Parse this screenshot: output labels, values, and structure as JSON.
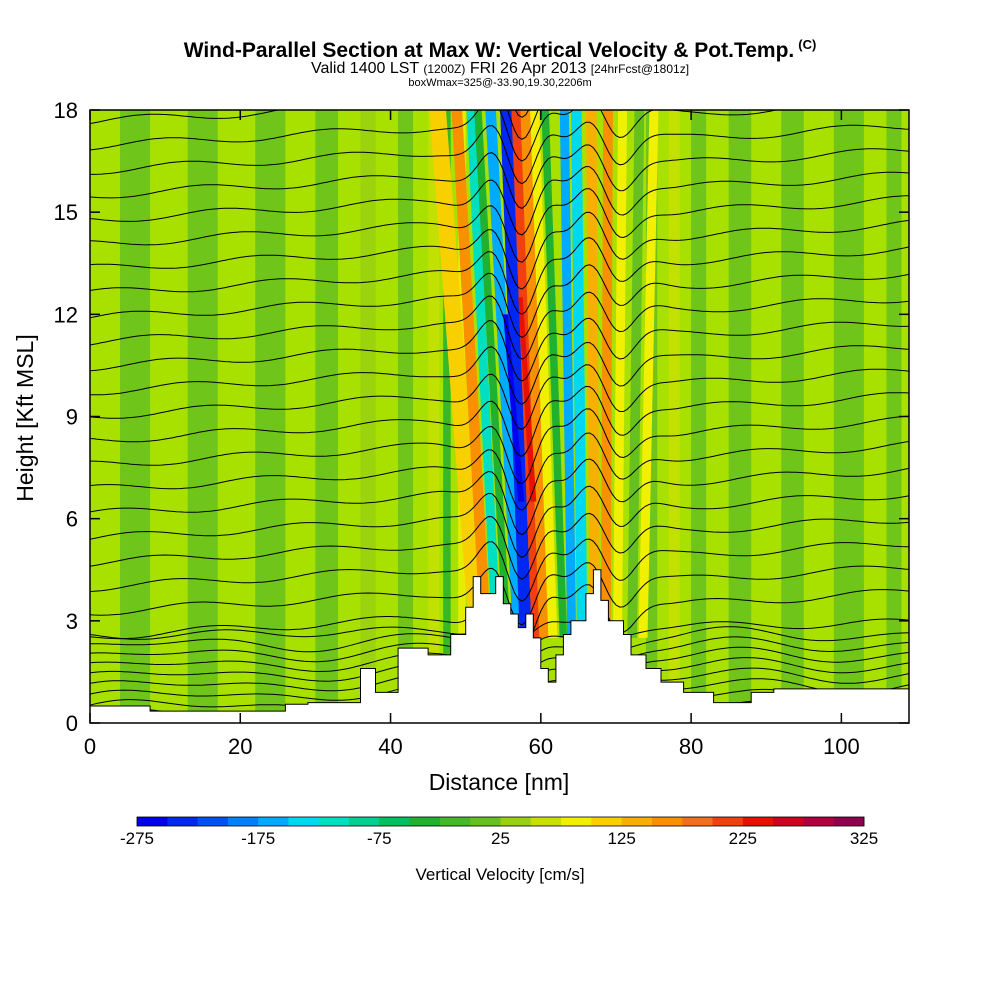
{
  "chart_data": {
    "type": "heatmap",
    "title": "Wind-Parallel Section at Max W: Vertical Velocity & Pot.Temp.",
    "title_mark": "(C)",
    "subtitle_main_a": "Valid 1400 LST",
    "subtitle_small_a": "(1200Z)",
    "subtitle_main_b": "FRI 26 Apr 2013",
    "subtitle_small_b": "[24hrFcst@1801z]",
    "subtitle2": "boxWmax=325@-33.90,19.30,2206m",
    "xlabel": "Distance [nm]",
    "ylabel": "Height [Kft MSL]",
    "xlim": [
      0,
      109
    ],
    "ylim": [
      0,
      18
    ],
    "x_ticks": [
      0,
      20,
      40,
      60,
      80,
      100
    ],
    "y_ticks": [
      0,
      3,
      6,
      9,
      12,
      15,
      18
    ],
    "colorbar": {
      "label": "Vertical Velocity [cm/s]",
      "tick_values": [
        -275,
        -175,
        -75,
        25,
        125,
        225,
        325
      ],
      "tick_labels": [
        "-275",
        "-175",
        "-75",
        "25",
        "125",
        "225",
        "325"
      ],
      "colors": [
        "#0000ee",
        "#0028f0",
        "#0050f4",
        "#0080f8",
        "#00aaff",
        "#00d8f0",
        "#00e0c0",
        "#00d090",
        "#00c060",
        "#22b030",
        "#44b828",
        "#66c020",
        "#99d010",
        "#c8e000",
        "#f0f000",
        "#f8d000",
        "#f8b000",
        "#f89000",
        "#f07020",
        "#f04010",
        "#e81000",
        "#d00020",
        "#b00040",
        "#900050"
      ]
    },
    "plateau_w_color": "#a8e000",
    "updraft_axis": {
      "base_x": 57,
      "top_x": 48,
      "note": "tilted updraft/downdraft couplet"
    }
  }
}
